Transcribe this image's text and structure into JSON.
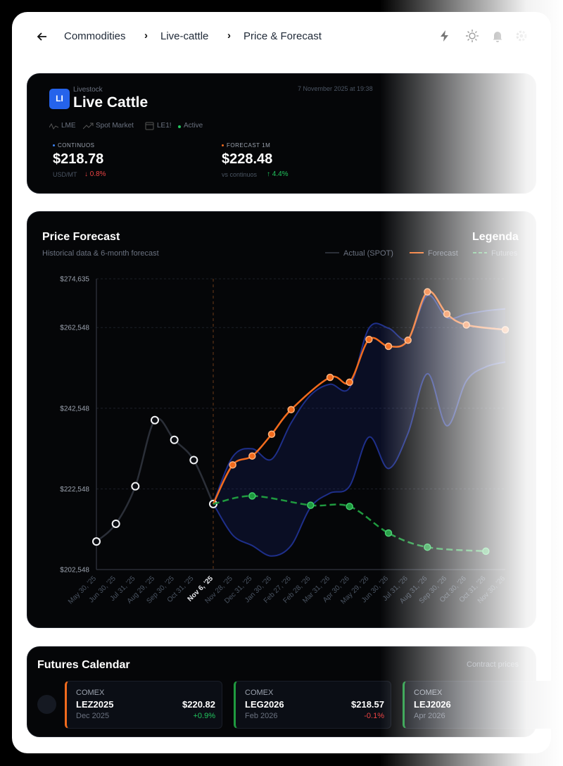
{
  "breadcrumb": [
    "Commodities",
    "Live-cattle",
    "Price & Forecast"
  ],
  "header": {
    "badge": "LI",
    "category": "Livestock",
    "title": "Live Cattle",
    "timestamp": "7 November 2025 at 19:38",
    "tags": [
      "LME",
      "Spot Market",
      "LE1!",
      "Active"
    ]
  },
  "metrics": [
    {
      "label": "CONTINUOS",
      "value": "$218.78",
      "unit": "USD/MT",
      "change": "↓ 0.8%"
    },
    {
      "label": "FORECAST 1M",
      "value": "$228.48",
      "unit": "vs continuos",
      "change": "↑ 4.4%"
    }
  ],
  "chart_data": {
    "type": "line",
    "title": "Price Forecast",
    "subtitle": "Historical data & 6-month forecast",
    "legend_title": "Legenda",
    "categories": [
      "May 30, '25",
      "Jun 30, '25",
      "Jul 31, '25",
      "Aug 29, '25",
      "Sep 30, '25",
      "Oct 31, '25",
      "Nov 6, '25",
      "Nov 28, '25",
      "Dec 31, '25",
      "Jan 30, '26",
      "Feb 27, '26",
      "Feb 28, '26",
      "Mar 31, '26",
      "Apr 30, '26",
      "May 29, '26",
      "Jun 30, '26",
      "Jul 31, '26",
      "Aug 31, '26",
      "Sep 30, '26",
      "Oct 30, '26",
      "Oct 31, '26",
      "Nov 30, '26"
    ],
    "marker": "Nov 6, '25",
    "series": [
      {
        "name": "Actual (SPOT)",
        "color": "#2b2f38",
        "dash": false,
        "x": [
          "May 30, '25",
          "Jun 30, '25",
          "Jul 31, '25",
          "Aug 29, '25",
          "Sep 30, '25",
          "Oct 31, '25",
          "Nov 6, '25"
        ],
        "values": [
          209500,
          213900,
          223200,
          239600,
          234700,
          229700,
          218800
        ]
      },
      {
        "name": "Forecast",
        "color": "#f26b1d",
        "dash": false,
        "x": [
          "Nov 6, '25",
          "Nov 28, '25",
          "Dec 31, '25",
          "Jan 30, '26",
          "Feb 27, '26",
          "Mar 31, '26",
          "Apr 30, '26",
          "May 29, '26",
          "Jun 30, '26",
          "Jul 31, '26",
          "Aug 31, '26",
          "Sep 30, '26",
          "Oct 30, '26",
          "Nov 30, '26"
        ],
        "values": [
          218800,
          228500,
          230700,
          236100,
          242200,
          250200,
          249000,
          259600,
          257900,
          259400,
          271400,
          265900,
          263200,
          262000
        ]
      },
      {
        "name": "Futures",
        "color": "#1f9a3f",
        "dash": true,
        "x": [
          "Nov 6, '25",
          "Dec 31, '25",
          "Feb 28, '26",
          "Apr 30, '26",
          "Jun 30, '26",
          "Aug 31, '26",
          "Oct 31, '26"
        ],
        "values": [
          218800,
          220800,
          218500,
          218200,
          211600,
          208100,
          207100
        ]
      }
    ],
    "band": {
      "color": "#1e2f8a",
      "x": [
        "Nov 6, '25",
        "Nov 28, '25",
        "Dec 31, '25",
        "Jan 30, '26",
        "Feb 27, '26",
        "Feb 28, '26",
        "Mar 31, '26",
        "Apr 30, '26",
        "May 29, '26",
        "Jun 30, '26",
        "Jul 31, '26",
        "Aug 31, '26",
        "Sep 30, '26",
        "Oct 30, '26",
        "Oct 31, '26",
        "Nov 30, '26"
      ],
      "upper": [
        218900,
        230500,
        232500,
        229900,
        238900,
        245800,
        248500,
        247600,
        262400,
        262400,
        259800,
        270500,
        265000,
        265900,
        266700,
        267200
      ],
      "lower": [
        218900,
        211100,
        208500,
        205900,
        208500,
        218000,
        221500,
        223200,
        235400,
        227600,
        236300,
        251100,
        238200,
        249300,
        252800,
        254000
      ]
    },
    "ylim": [
      202548,
      274635
    ],
    "yticks": [
      {
        "value": 202548,
        "label": "$202,548"
      },
      {
        "value": 222548,
        "label": "$222,548"
      },
      {
        "value": 242548,
        "label": "$242,548"
      },
      {
        "value": 262548,
        "label": "$262,548"
      },
      {
        "value": 274635,
        "label": "$274,635"
      }
    ],
    "grid": true
  },
  "futures_calendar": {
    "title": "Futures Calendar",
    "subtitle": "Contract prices",
    "contracts": [
      {
        "exchange": "COMEX",
        "code": "LEZ2025",
        "month": "Dec 2025",
        "price": "$220.82",
        "change": "+0.9%",
        "accent": "#f26b1d"
      },
      {
        "exchange": "COMEX",
        "code": "LEG2026",
        "month": "Feb 2026",
        "price": "$218.57",
        "change": "-0.1%",
        "accent": "#1f9a3f"
      },
      {
        "exchange": "COMEX",
        "code": "LEJ2026",
        "month": "Apr 2026",
        "accent": "#1f9a3f"
      }
    ]
  }
}
